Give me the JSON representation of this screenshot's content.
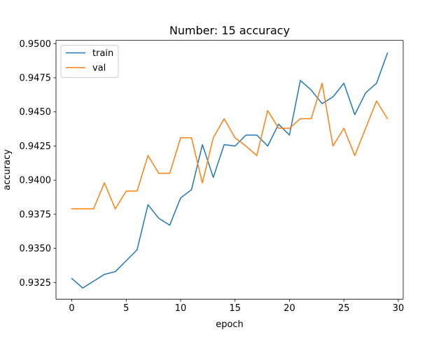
{
  "chart_data": {
    "type": "line",
    "title": "Number: 15 accuracy",
    "xlabel": "epoch",
    "ylabel": "accuracy",
    "xlim": [
      -1.45,
      30.45
    ],
    "ylim": [
      0.93128,
      0.95024
    ],
    "xticks": [
      0,
      5,
      10,
      15,
      20,
      25,
      30
    ],
    "xtick_labels": [
      "0",
      "5",
      "10",
      "15",
      "20",
      "25",
      "30"
    ],
    "yticks": [
      0.9325,
      0.935,
      0.9375,
      0.94,
      0.9425,
      0.945,
      0.9475,
      0.95
    ],
    "ytick_labels": [
      "0.9325",
      "0.9350",
      "0.9375",
      "0.9400",
      "0.9425",
      "0.9450",
      "0.9475",
      "0.9500"
    ],
    "grid": false,
    "legend_position": "upper-left",
    "x": [
      0,
      1,
      2,
      3,
      4,
      5,
      6,
      7,
      8,
      9,
      10,
      11,
      12,
      13,
      14,
      15,
      16,
      17,
      18,
      19,
      20,
      21,
      22,
      23,
      24,
      25,
      26,
      27,
      28,
      29
    ],
    "series": [
      {
        "name": "train",
        "color": "#1f77b4",
        "values": [
          0.9328,
          0.9321,
          0.9326,
          0.9331,
          0.9333,
          0.9341,
          0.9349,
          0.9382,
          0.9372,
          0.9367,
          0.9387,
          0.9393,
          0.9426,
          0.9402,
          0.9426,
          0.9425,
          0.9433,
          0.9433,
          0.9425,
          0.9441,
          0.9433,
          0.9473,
          0.9466,
          0.9456,
          0.9461,
          0.9471,
          0.9448,
          0.9464,
          0.9471,
          0.9493
        ]
      },
      {
        "name": "val",
        "color": "#ff7f0e",
        "values": [
          0.9379,
          0.9379,
          0.9379,
          0.9398,
          0.9379,
          0.9392,
          0.9392,
          0.9418,
          0.9405,
          0.9405,
          0.9431,
          0.9431,
          0.9398,
          0.9431,
          0.9445,
          0.9431,
          0.9425,
          0.9418,
          0.9451,
          0.9438,
          0.9438,
          0.9445,
          0.9445,
          0.9471,
          0.9425,
          0.9438,
          0.9418,
          0.9438,
          0.9458,
          0.9445
        ]
      }
    ]
  }
}
